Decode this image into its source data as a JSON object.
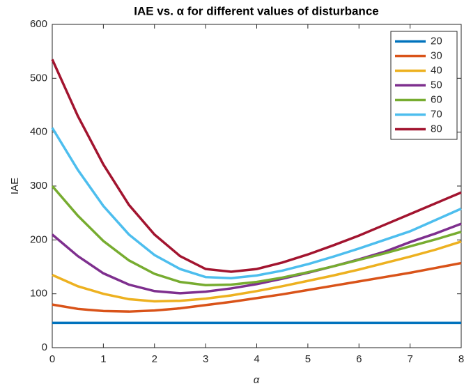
{
  "chart_data": {
    "type": "line",
    "title": "IAE vs. α for different values of disturbance",
    "xlabel": "α",
    "ylabel": "IAE",
    "x": [
      0,
      0.5,
      1,
      1.5,
      2,
      2.5,
      3,
      3.5,
      4,
      4.5,
      5,
      5.5,
      6,
      6.5,
      7,
      7.5,
      8
    ],
    "series": [
      {
        "name": "20",
        "color": "#0072BD",
        "values": [
          46,
          46,
          46,
          46,
          46,
          46,
          46,
          46,
          46,
          46,
          46,
          46,
          46,
          46,
          46,
          46,
          46
        ]
      },
      {
        "name": "30",
        "color": "#D95319",
        "values": [
          80,
          72,
          68,
          67,
          69,
          73,
          79,
          85,
          92,
          99,
          107,
          115,
          123,
          131,
          139,
          148,
          157
        ]
      },
      {
        "name": "40",
        "color": "#EDB120",
        "values": [
          135,
          114,
          100,
          90,
          86,
          87,
          91,
          97,
          105,
          114,
          124,
          134,
          145,
          157,
          169,
          182,
          197
        ]
      },
      {
        "name": "50",
        "color": "#7E2F8E",
        "values": [
          210,
          170,
          138,
          117,
          105,
          101,
          104,
          110,
          118,
          128,
          139,
          151,
          164,
          178,
          196,
          212,
          230
        ]
      },
      {
        "name": "60",
        "color": "#77AC30",
        "values": [
          300,
          245,
          198,
          162,
          137,
          122,
          116,
          117,
          122,
          130,
          140,
          151,
          163,
          175,
          188,
          201,
          215
        ]
      },
      {
        "name": "70",
        "color": "#4DBEEE",
        "values": [
          408,
          330,
          263,
          210,
          172,
          146,
          131,
          129,
          134,
          143,
          155,
          169,
          184,
          200,
          216,
          237,
          258
        ]
      },
      {
        "name": "80",
        "color": "#A2142F",
        "values": [
          535,
          430,
          340,
          265,
          210,
          170,
          146,
          141,
          146,
          158,
          173,
          190,
          208,
          228,
          248,
          268,
          288
        ]
      }
    ],
    "xlim": [
      0,
      8
    ],
    "xticks": [
      0,
      1,
      2,
      3,
      4,
      5,
      6,
      7,
      8
    ],
    "ylim": [
      0,
      600
    ],
    "yticks": [
      0,
      100,
      200,
      300,
      400,
      500,
      600
    ],
    "grid": false,
    "legend": "northeast"
  }
}
